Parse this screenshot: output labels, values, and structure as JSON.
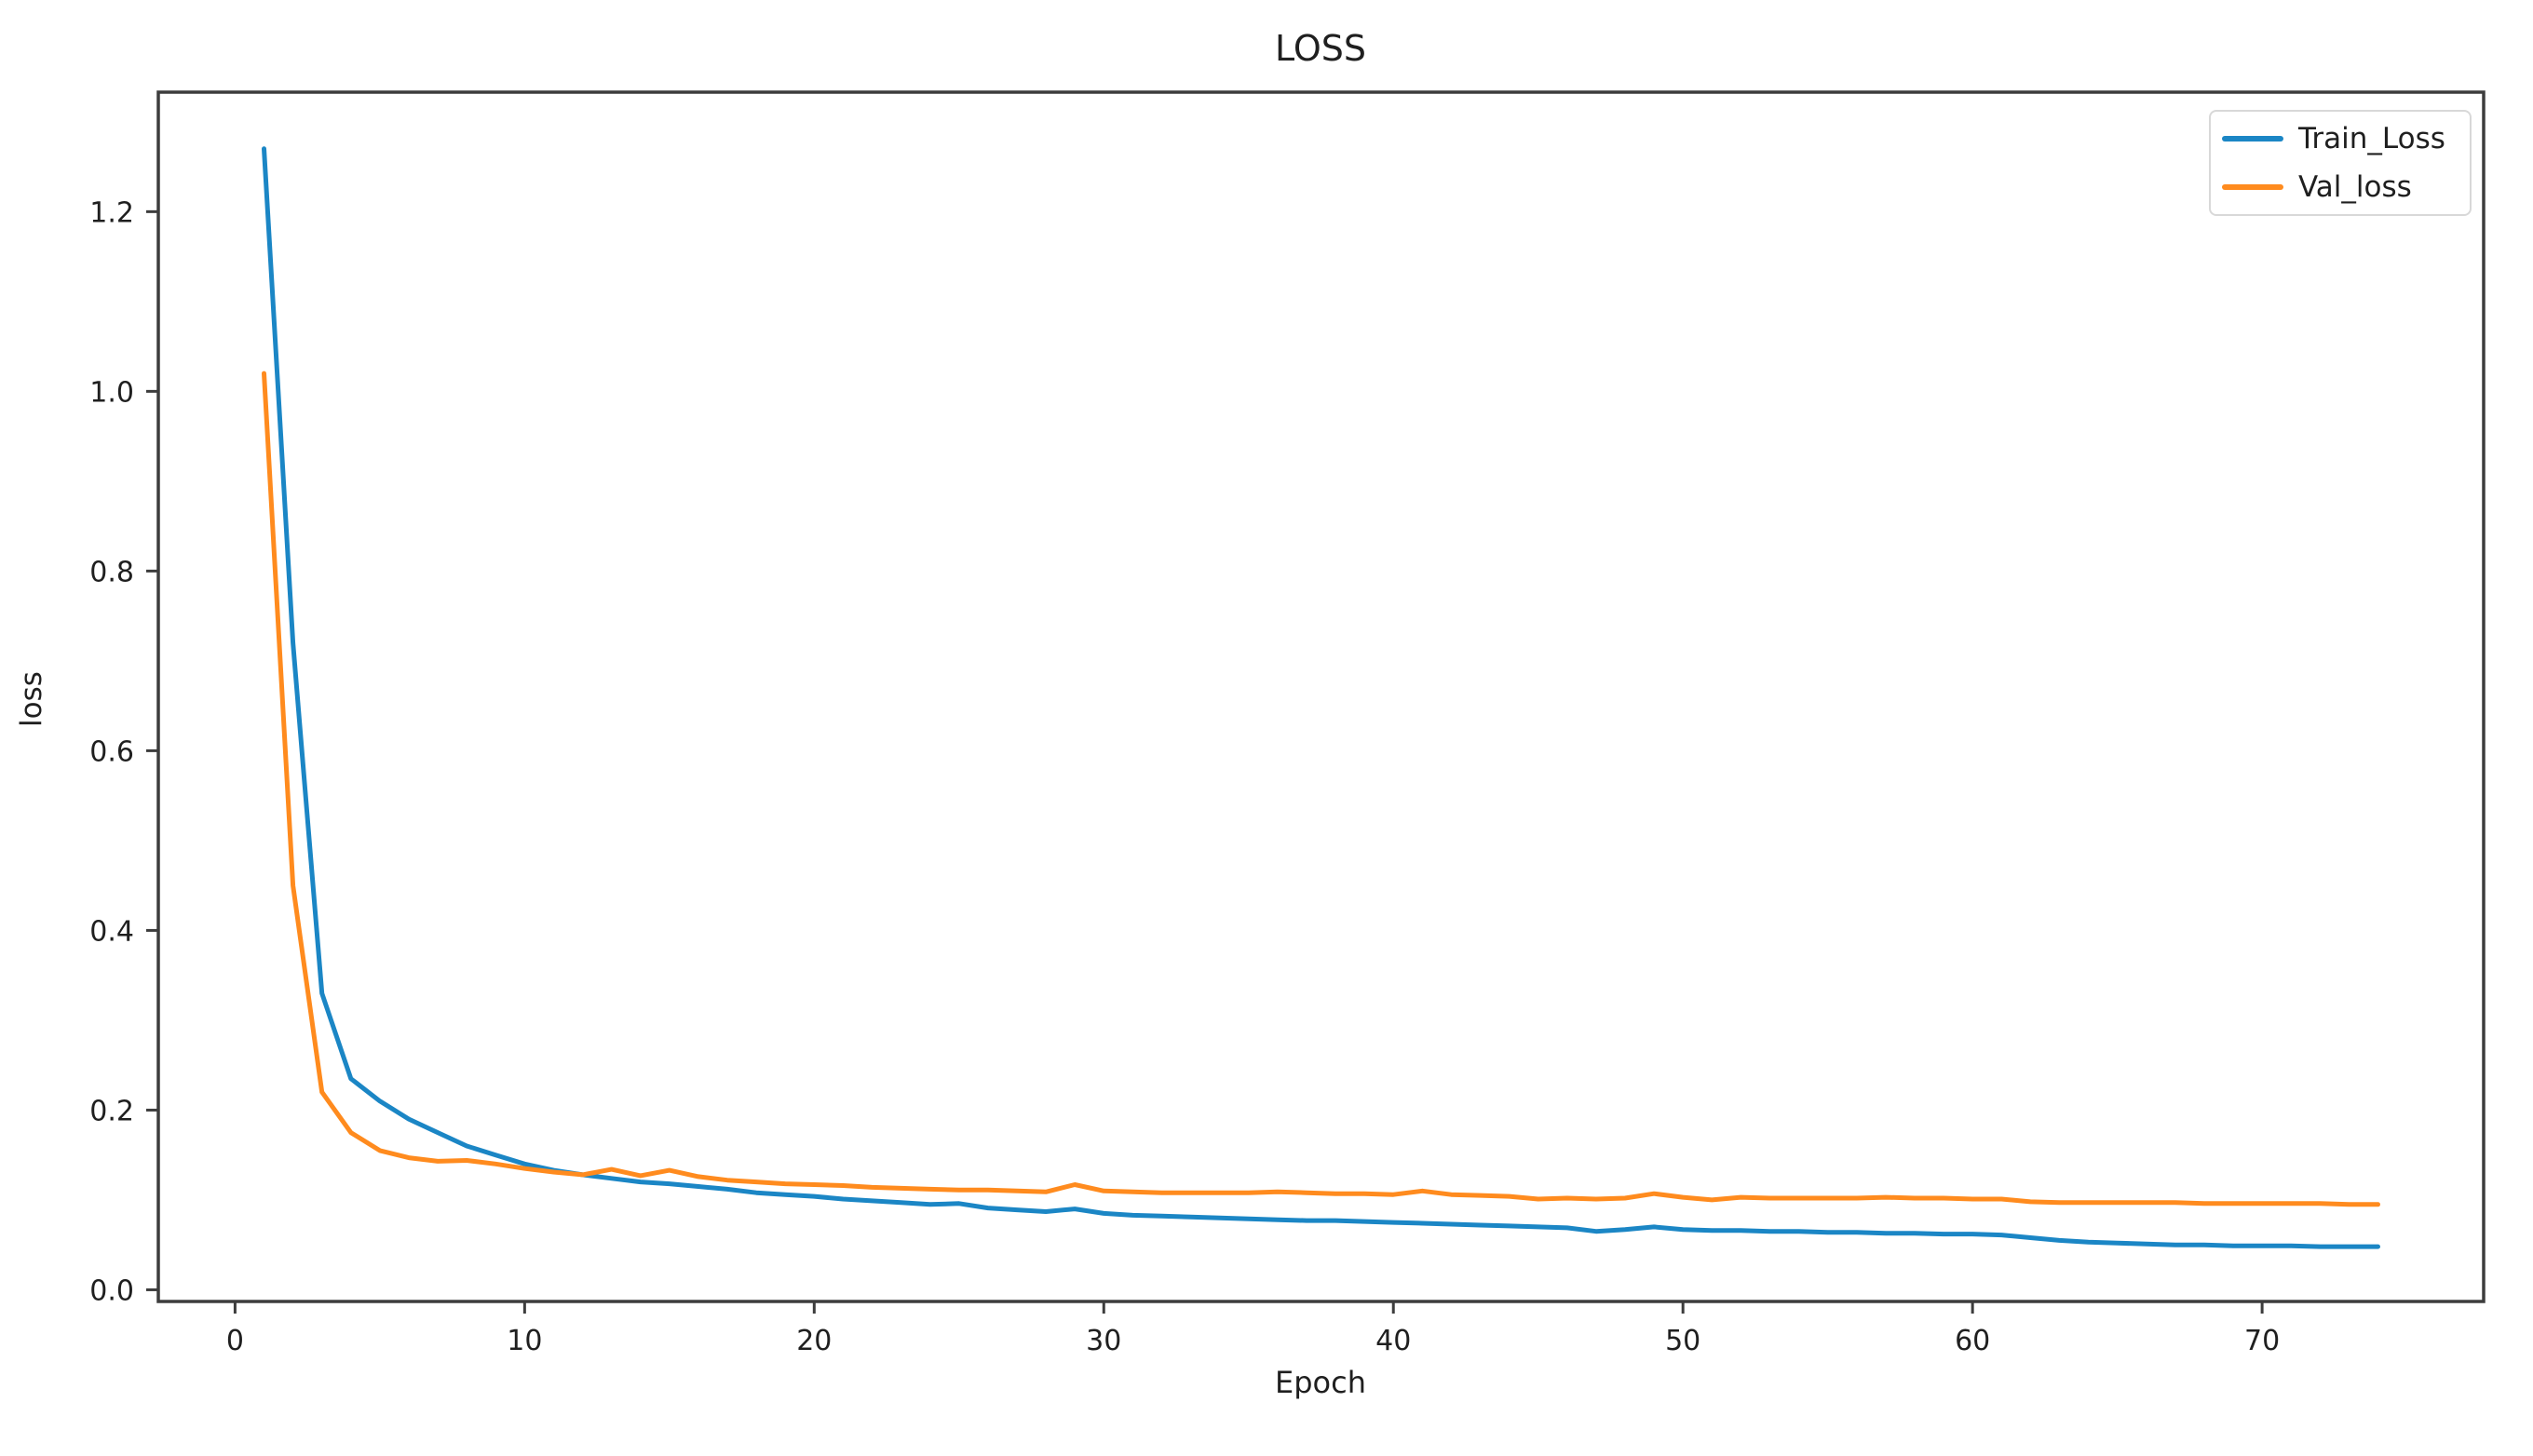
{
  "chart_data": {
    "type": "line",
    "title": "LOSS",
    "xlabel": "Epoch",
    "ylabel": "loss",
    "grid": false,
    "legend_position": "upper right",
    "axis_color": "#3d3d3d",
    "tick_label_color": "#1f1f1f",
    "xlim": [
      -2.65,
      77.65
    ],
    "ylim": [
      -0.013,
      1.333
    ],
    "xticks": [
      {
        "value": 0,
        "label": "0"
      },
      {
        "value": 10,
        "label": "10"
      },
      {
        "value": 20,
        "label": "20"
      },
      {
        "value": 30,
        "label": "30"
      },
      {
        "value": 40,
        "label": "40"
      },
      {
        "value": 50,
        "label": "50"
      },
      {
        "value": 60,
        "label": "60"
      },
      {
        "value": 70,
        "label": "70"
      }
    ],
    "yticks": [
      {
        "value": 0.0,
        "label": "0.0"
      },
      {
        "value": 0.2,
        "label": "0.2"
      },
      {
        "value": 0.4,
        "label": "0.4"
      },
      {
        "value": 0.6,
        "label": "0.6"
      },
      {
        "value": 0.8,
        "label": "0.8"
      },
      {
        "value": 1.0,
        "label": "1.0"
      },
      {
        "value": 1.2,
        "label": "1.2"
      }
    ],
    "x": [
      1,
      2,
      3,
      4,
      5,
      6,
      7,
      8,
      9,
      10,
      11,
      12,
      13,
      14,
      15,
      16,
      17,
      18,
      19,
      20,
      21,
      22,
      23,
      24,
      25,
      26,
      27,
      28,
      29,
      30,
      31,
      32,
      33,
      34,
      35,
      36,
      37,
      38,
      39,
      40,
      41,
      42,
      43,
      44,
      45,
      46,
      47,
      48,
      49,
      50,
      51,
      52,
      53,
      54,
      55,
      56,
      57,
      58,
      59,
      60,
      61,
      62,
      63,
      64,
      65,
      66,
      67,
      68,
      69,
      70,
      71,
      72,
      73,
      74
    ],
    "series": [
      {
        "name": "Train_Loss",
        "color": "#1b86c5",
        "values": [
          1.27,
          0.72,
          0.33,
          0.235,
          0.21,
          0.19,
          0.175,
          0.16,
          0.15,
          0.14,
          0.133,
          0.128,
          0.124,
          0.12,
          0.118,
          0.115,
          0.112,
          0.108,
          0.106,
          0.104,
          0.101,
          0.099,
          0.097,
          0.095,
          0.096,
          0.091,
          0.089,
          0.087,
          0.09,
          0.085,
          0.083,
          0.082,
          0.081,
          0.08,
          0.079,
          0.078,
          0.077,
          0.077,
          0.076,
          0.075,
          0.074,
          0.073,
          0.072,
          0.071,
          0.07,
          0.069,
          0.065,
          0.067,
          0.07,
          0.067,
          0.066,
          0.066,
          0.065,
          0.065,
          0.064,
          0.064,
          0.063,
          0.063,
          0.062,
          0.062,
          0.061,
          0.058,
          0.055,
          0.053,
          0.052,
          0.051,
          0.05,
          0.05,
          0.049,
          0.049,
          0.049,
          0.048,
          0.048,
          0.048
        ]
      },
      {
        "name": "Val_loss",
        "color": "#ff8b1e",
        "values": [
          1.02,
          0.45,
          0.22,
          0.175,
          0.155,
          0.147,
          0.143,
          0.144,
          0.14,
          0.135,
          0.131,
          0.128,
          0.134,
          0.127,
          0.133,
          0.126,
          0.122,
          0.12,
          0.118,
          0.117,
          0.116,
          0.114,
          0.113,
          0.112,
          0.111,
          0.111,
          0.11,
          0.109,
          0.117,
          0.11,
          0.109,
          0.108,
          0.108,
          0.108,
          0.108,
          0.109,
          0.108,
          0.107,
          0.107,
          0.106,
          0.11,
          0.106,
          0.105,
          0.104,
          0.101,
          0.102,
          0.101,
          0.102,
          0.107,
          0.103,
          0.1,
          0.103,
          0.102,
          0.102,
          0.102,
          0.102,
          0.103,
          0.102,
          0.102,
          0.101,
          0.101,
          0.098,
          0.097,
          0.097,
          0.097,
          0.097,
          0.097,
          0.096,
          0.096,
          0.096,
          0.096,
          0.096,
          0.095,
          0.095
        ]
      }
    ]
  }
}
